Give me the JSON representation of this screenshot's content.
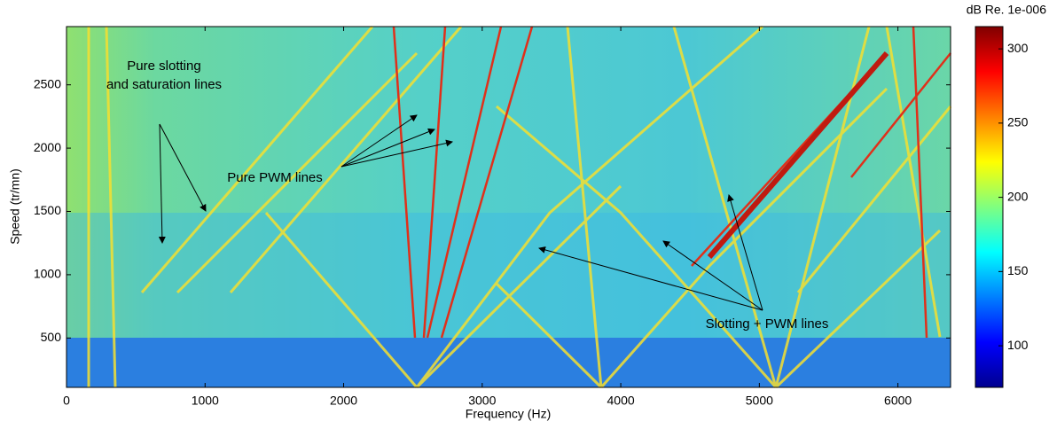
{
  "chart_data": {
    "type": "spectrogram",
    "xlabel": "Frequency (Hz)",
    "ylabel": "Speed (tr/mn)",
    "xlim": [
      0,
      6380
    ],
    "xticks": [
      0,
      1000,
      2000,
      3000,
      4000,
      5000,
      6000
    ],
    "ylim": [
      110,
      2960
    ],
    "yticks": [
      500,
      1000,
      1500,
      2000,
      2500
    ],
    "colorbar": {
      "label": "dB Re. 1e-006",
      "colormap": "jet",
      "clim": [
        72,
        315
      ],
      "ticks": [
        100,
        150,
        200,
        250,
        300
      ]
    },
    "annotations": [
      "Pure slotting",
      "and saturation lines",
      "Pure PWM lines",
      "Slotting + PWM lines"
    ]
  }
}
